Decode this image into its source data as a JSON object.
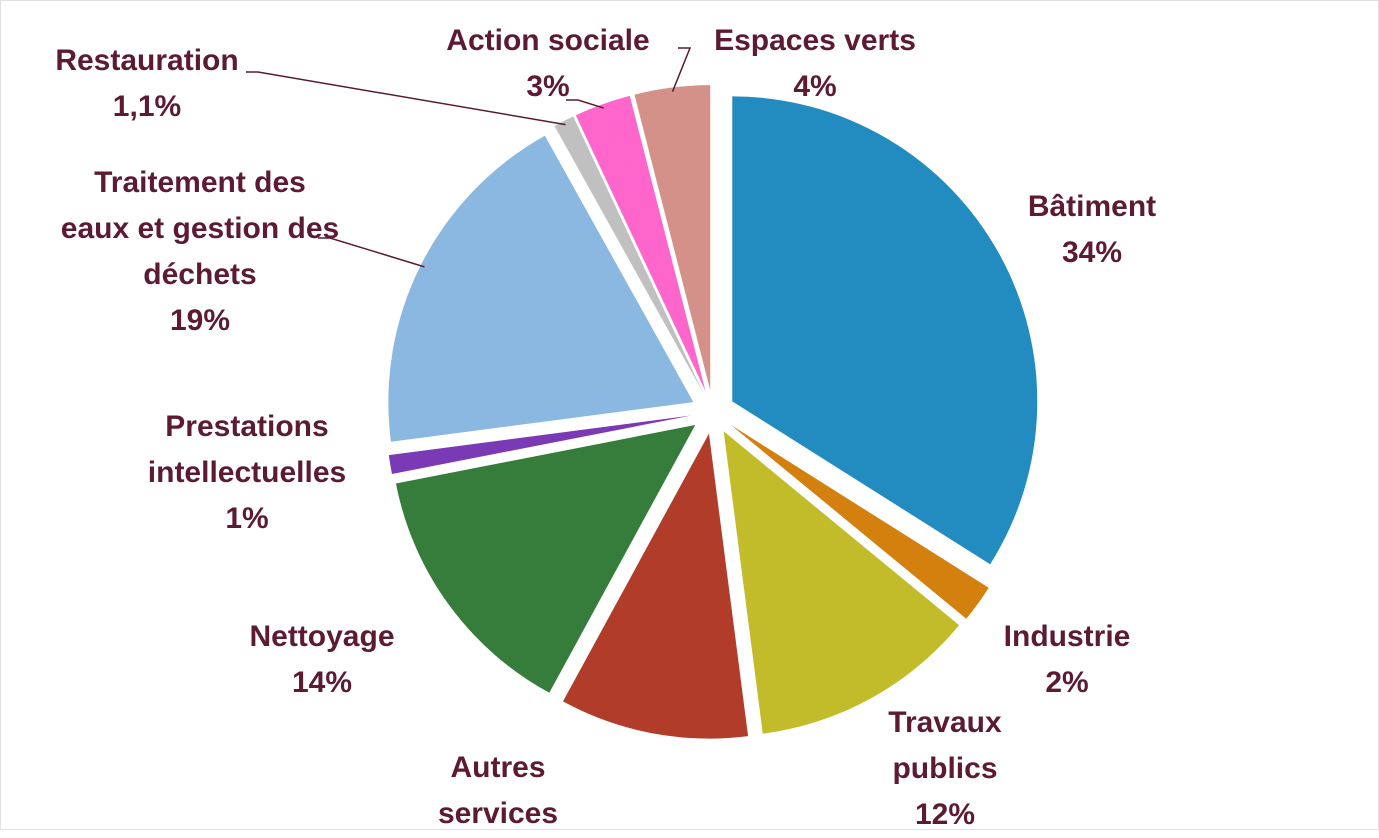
{
  "chart_data": {
    "type": "pie",
    "categories": [
      "Bâtiment",
      "Industrie",
      "Travaux publics",
      "Autres services",
      "Nettoyage",
      "Prestations intellectuelles",
      "Traitement des eaux et gestion des déchets",
      "Restauration",
      "Action sociale",
      "Espaces verts"
    ],
    "values": [
      34,
      2,
      12,
      10,
      14,
      1,
      19,
      1.1,
      3,
      4
    ],
    "value_labels": [
      "34%",
      "2%",
      "12%",
      null,
      "14%",
      "1%",
      "19%",
      "1,1%",
      "3%",
      "4%"
    ],
    "colors": [
      "#228bc0",
      "#d4800e",
      "#c2bc2a",
      "#b13c29",
      "#367d3c",
      "#7b3ab5",
      "#8ab8e0",
      "#c0c0c0",
      "#ff66cc",
      "#d49189"
    ]
  }
}
